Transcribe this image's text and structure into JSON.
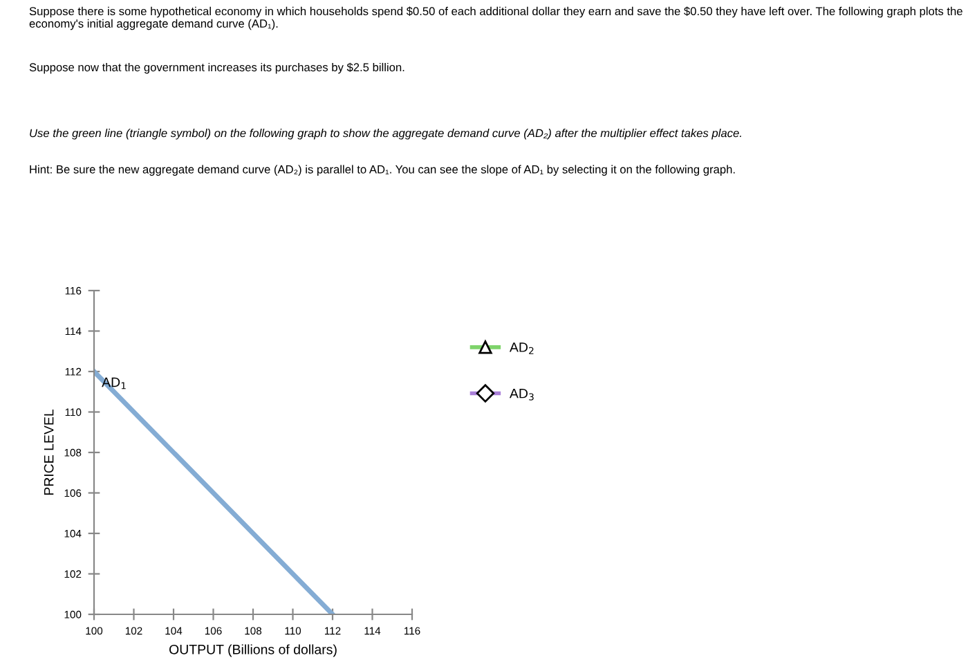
{
  "chart_data": {
    "type": "line",
    "annotations": [
      "Suppose there is some hypothetical economy in which households spend $0.50 of each additional dollar they earn and save the $0.50 they have left over. The following graph plots the economy's initial aggregate demand curve (AD₁).",
      "Suppose now that the government increases its purchases by $2.5 billion.",
      "Use the green line (triangle symbol) on the following graph to show the aggregate demand curve (AD₂) after the multiplier effect takes place.",
      "Hint: Be sure the new aggregate demand curve (AD₂) is parallel to AD₁. You can see the slope of AD₁ by selecting it on the following graph."
    ],
    "xlabel": "OUTPUT (Billions of dollars)",
    "ylabel": "PRICE LEVEL",
    "xlim": [
      100,
      116
    ],
    "ylim": [
      100,
      116
    ],
    "xticks": [
      100,
      102,
      104,
      106,
      108,
      110,
      112,
      114,
      116
    ],
    "yticks": [
      100,
      102,
      104,
      106,
      108,
      110,
      112,
      114,
      116
    ],
    "grid": false,
    "legend": "right",
    "series": [
      {
        "name": "AD$_{1}$",
        "color": "#84acd4",
        "x": [
          100,
          112
        ],
        "values": [
          112,
          100
        ],
        "marker": "none"
      },
      {
        "name": "AD$_{2}$",
        "color": "#7ed36b",
        "marker": "triangle"
      },
      {
        "name": "AD$_{3}$",
        "color": "#a97fd8",
        "marker": "diamond"
      }
    ]
  }
}
